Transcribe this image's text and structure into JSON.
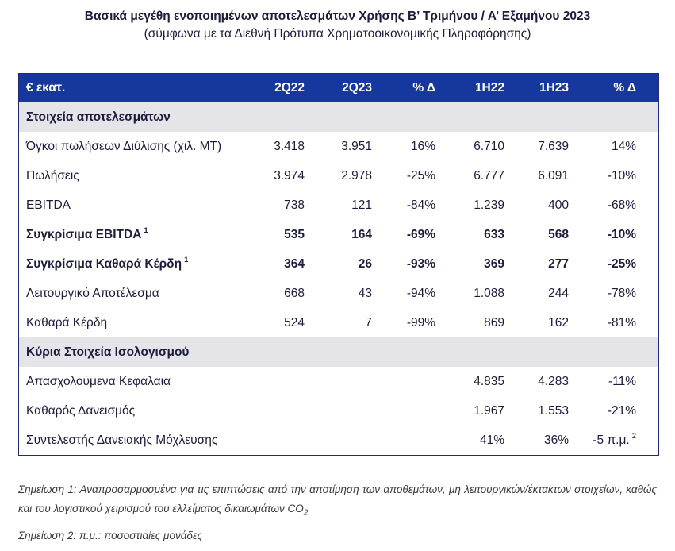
{
  "title": {
    "line1": "Βασικά μεγέθη ενοποιημένων αποτελεσμάτων Χρήσης Β’ Τριμήνου / Α’ Εξαμήνου 2023",
    "line2": "(σύμφωνα με τα Διεθνή Πρότυπα Χρηματοοικονομικής Πληροφόρησης)"
  },
  "table": {
    "header": {
      "unit_label": "€ εκατ.",
      "columns": [
        "2Q22",
        "2Q23",
        "% Δ",
        "1H22",
        "1H23",
        "% Δ"
      ]
    },
    "column_names": [
      "cell-2q22",
      "cell-2q23",
      "cell-pct-delta-quarter",
      "cell-1h22",
      "cell-1h23",
      "cell-pct-delta-half"
    ],
    "sections": [
      {
        "title": "Στοιχεία αποτελεσμάτων",
        "rows": [
          {
            "label": "Όγκοι πωλήσεων Διύλισης (χιλ. ΜΤ)",
            "bold": false,
            "values": [
              "3.418",
              "3.951",
              "16%",
              "6.710",
              "7.639",
              "14%"
            ]
          },
          {
            "label": "Πωλήσεις",
            "bold": false,
            "values": [
              "3.974",
              "2.978",
              "-25%",
              "6.777",
              "6.091",
              "-10%"
            ]
          },
          {
            "label": "EBITDA",
            "bold": false,
            "values": [
              "738",
              "121",
              "-84%",
              "1.239",
              "400",
              "-68%"
            ]
          },
          {
            "label": "Συγκρίσιμα EBITDA",
            "label_sup": "1",
            "bold": true,
            "values": [
              "535",
              "164",
              "-69%",
              "633",
              "568",
              "-10%"
            ]
          },
          {
            "label": "Συγκρίσιμα Καθαρά Κέρδη",
            "label_sup": "1",
            "bold": true,
            "values": [
              "364",
              "26",
              "-93%",
              "369",
              "277",
              "-25%"
            ]
          },
          {
            "label": "Λειτουργικό Αποτέλεσμα",
            "bold": false,
            "values": [
              "668",
              "43",
              "-94%",
              "1.088",
              "244",
              "-78%"
            ]
          },
          {
            "label": "Καθαρά Κέρδη",
            "bold": false,
            "values": [
              "524",
              "7",
              "-99%",
              "869",
              "162",
              "-81%"
            ]
          }
        ]
      },
      {
        "title": "Κύρια Στοιχεία Ισολογισμού",
        "rows": [
          {
            "label": "Απασχολούμενα Κεφάλαια",
            "bold": false,
            "values": [
              "",
              "",
              "",
              "4.835",
              "4.283",
              "-11%"
            ]
          },
          {
            "label": "Καθαρός Δανεισμός",
            "bold": false,
            "values": [
              "",
              "",
              "",
              "1.967",
              "1.553",
              "-21%"
            ]
          },
          {
            "label": "Συντελεστής Δανειακής Μόχλευσης",
            "bold": false,
            "values": [
              "",
              "",
              "",
              "41%",
              "36%",
              "-5 π.μ."
            ],
            "last_value_sup": "2"
          }
        ]
      }
    ]
  },
  "footnotes": {
    "note1": {
      "text": "Σημείωση 1: Αναπροσαρμοσμένα για τις επιπτώσεις από την αποτίμηση των αποθεμάτων, μη λειτουργικών/έκτακτων στοιχείων, καθώς και του λογιστικού χειρισμού του ελλείματος δικαιωμάτων CO",
      "subscript": "2"
    },
    "note2": {
      "text": "Σημείωση 2: π.μ.: ποσοστιαίες μονάδες"
    }
  },
  "colors": {
    "header_bg": "#16379E",
    "section_bg": "#E4E4E9",
    "border": "#1E2B72",
    "text": "#1C1C3C",
    "footnote_text": "#3A3A3A"
  }
}
